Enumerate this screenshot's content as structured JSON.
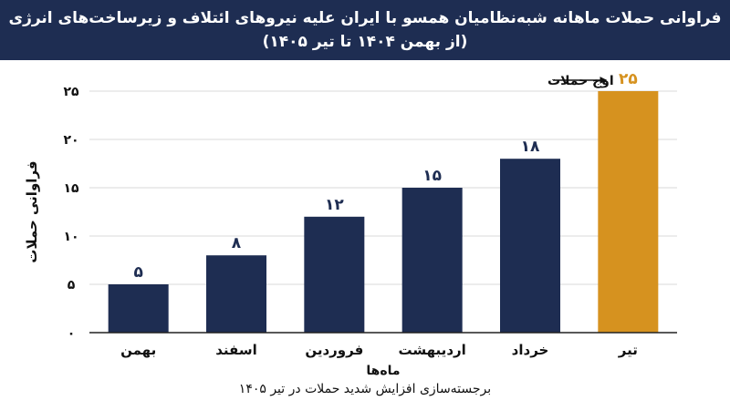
{
  "header": {
    "title_line_1": "فراوانی حملات ماهانه شبه‌نظامیان همسو با ایران علیه نیروهای ائتلاف و زیرساخت‌های انرژی",
    "title_line_2": "(از بهمن ۱۴۰۴ تا تیر ۱۴۰۵)"
  },
  "colors": {
    "header_bg": "#1e2d52",
    "bar": "#1e2d52",
    "highlight_bar": "#d6921f",
    "grid": "#d9d9d9"
  },
  "chart_data": {
    "type": "bar",
    "categories": [
      "بهمن",
      "اسفند",
      "فروردین",
      "اردیبهشت",
      "خرداد",
      "تیر"
    ],
    "values": [
      5,
      8,
      12,
      15,
      18,
      25
    ],
    "value_labels": [
      "۵",
      "۸",
      "۱۲",
      "۱۵",
      "۱۸",
      "۲۵"
    ],
    "highlight_index": 5,
    "xlabel": "ماه‌ها",
    "ylabel": "فراوانی حملات",
    "ylim": [
      0,
      25
    ],
    "yticks": [
      0,
      5,
      10,
      15,
      20,
      25
    ],
    "ytick_labels": [
      "۰",
      "۵",
      "۱۰",
      "۱۵",
      "۲۰",
      "۲۵"
    ],
    "grid": true,
    "annotation": "اوج حملات"
  },
  "footnote": "برجسته‌سازی افزایش شدید حملات در تیر ۱۴۰۵"
}
